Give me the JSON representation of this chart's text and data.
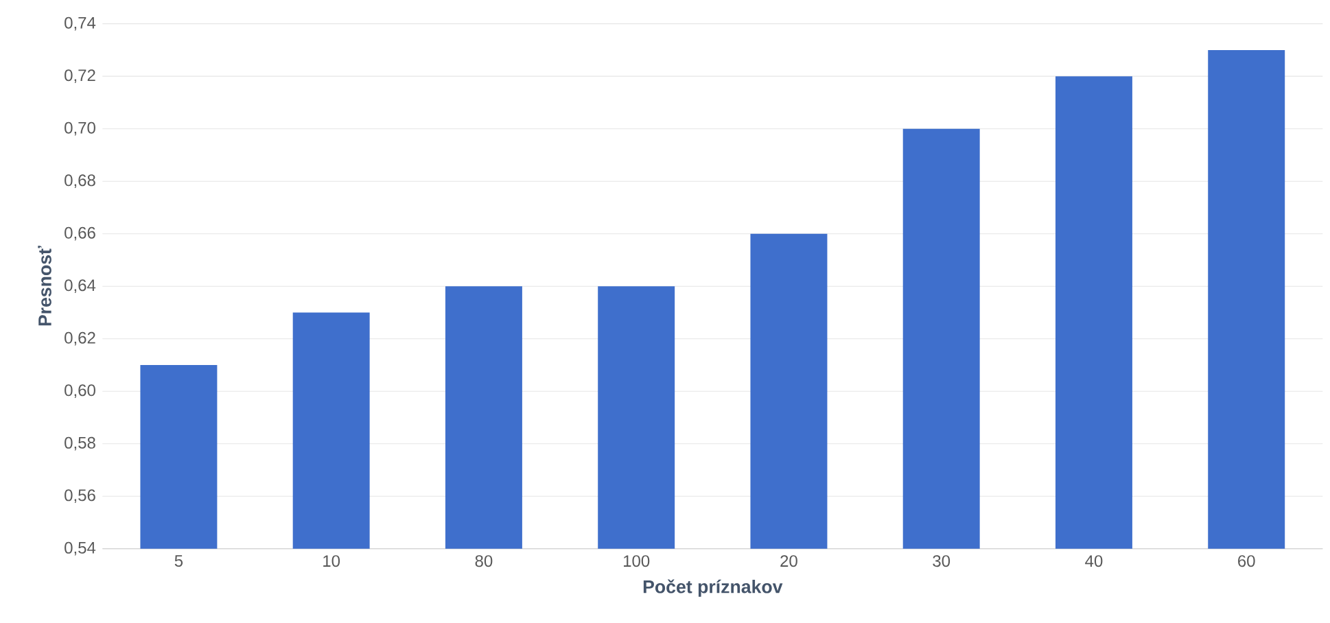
{
  "chart_data": {
    "type": "bar",
    "xlabel": "Počet príznakov",
    "ylabel": "Presnosť",
    "categories": [
      "5",
      "10",
      "80",
      "100",
      "20",
      "30",
      "40",
      "60"
    ],
    "values": [
      0.61,
      0.63,
      0.64,
      0.64,
      0.66,
      0.7,
      0.72,
      0.73
    ],
    "color": "#3f6fcc",
    "ylim": [
      0.54,
      0.74
    ],
    "yticks": [
      {
        "value": 0.54,
        "label": "0,54"
      },
      {
        "value": 0.56,
        "label": "0,56"
      },
      {
        "value": 0.58,
        "label": "0,58"
      },
      {
        "value": 0.6,
        "label": "0,60"
      },
      {
        "value": 0.62,
        "label": "0,62"
      },
      {
        "value": 0.64,
        "label": "0,64"
      },
      {
        "value": 0.66,
        "label": "0,66"
      },
      {
        "value": 0.68,
        "label": "0,68"
      },
      {
        "value": 0.7,
        "label": "0,70"
      },
      {
        "value": 0.72,
        "label": "0,72"
      },
      {
        "value": 0.74,
        "label": "0,74"
      }
    ],
    "grid": "y"
  }
}
